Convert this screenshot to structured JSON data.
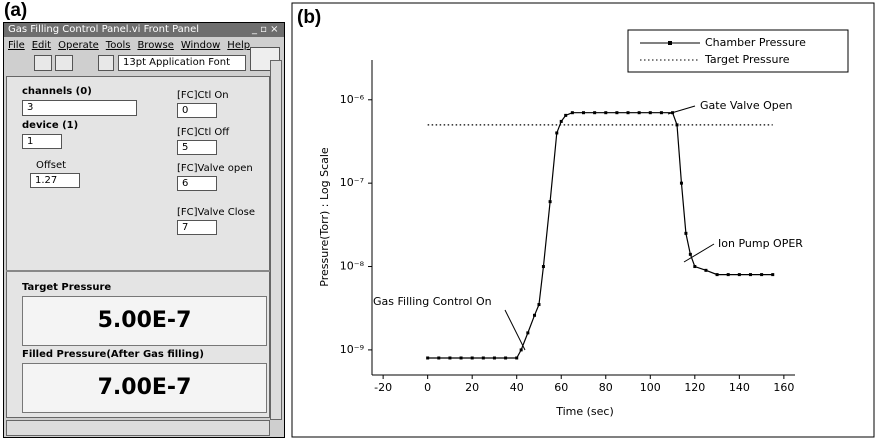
{
  "panel": {
    "label": "(a)",
    "window_title": "Gas Filling Control Panel.vi Front Panel",
    "menu": [
      "File",
      "Edit",
      "Operate",
      "Tools",
      "Browse",
      "Window",
      "Help"
    ],
    "font": "13pt Application Font",
    "controls": [
      {
        "label": "channels (0)",
        "value": "3"
      },
      {
        "label": "device (1)",
        "value": "1"
      },
      {
        "label": "Offset",
        "value": "1.27"
      },
      {
        "label": "[FC]Ctl On",
        "value": "0"
      },
      {
        "label": "[FC]Ctl Off",
        "value": "5"
      },
      {
        "label": "[FC]Valve open",
        "value": "6"
      },
      {
        "label": "[FC]Valve Close",
        "value": "7"
      }
    ],
    "target_pressure": {
      "label": "Target Pressure",
      "value": "5.00E-7"
    },
    "filled_pressure": {
      "label": "Filled Pressure(After Gas filling)",
      "value": "7.00E-7"
    }
  },
  "chart_data": {
    "type": "line",
    "label": "(b)",
    "x_label": "Time (sec)",
    "y_label": "Pressure(Torr) : Log Scale",
    "yscale": "log",
    "grid": false,
    "legend": "upper right",
    "annotations": [
      "Gate Valve Open",
      "Ion Pump OPER",
      "Gas Filling Control On"
    ],
    "xlim": [
      -25,
      165
    ],
    "xticks": [
      -20,
      0,
      20,
      40,
      60,
      80,
      100,
      120,
      140,
      160
    ],
    "ylim": [
      5e-10,
      3e-06
    ],
    "yticks": [
      {
        "value": 1e-09,
        "label": "10⁻⁹"
      },
      {
        "value": 1e-08,
        "label": "10⁻⁸"
      },
      {
        "value": 1e-07,
        "label": "10⁻⁷"
      },
      {
        "value": 1e-06,
        "label": "10⁻⁶"
      }
    ],
    "series": [
      {
        "name": "Chamber Pressure",
        "color": "#000000",
        "style": "solid",
        "x": [
          0,
          5,
          10,
          15,
          20,
          25,
          30,
          35,
          40,
          42,
          45,
          48,
          50,
          52,
          55,
          58,
          60,
          62,
          65,
          70,
          75,
          80,
          85,
          90,
          95,
          100,
          105,
          110,
          112,
          114,
          116,
          118,
          120,
          125,
          130,
          135,
          140,
          145,
          150,
          155
        ],
        "values": [
          8e-10,
          8e-10,
          8e-10,
          8e-10,
          8e-10,
          8e-10,
          8e-10,
          8e-10,
          8e-10,
          1e-09,
          1.6e-09,
          2.6e-09,
          3.5e-09,
          1e-08,
          6e-08,
          4e-07,
          5.5e-07,
          6.5e-07,
          7e-07,
          7e-07,
          7e-07,
          7e-07,
          7e-07,
          7e-07,
          7e-07,
          7e-07,
          7e-07,
          7e-07,
          5e-07,
          1e-07,
          2.5e-08,
          1.4e-08,
          1e-08,
          9e-09,
          8e-09,
          8e-09,
          8e-09,
          8e-09,
          8e-09,
          8e-09
        ]
      },
      {
        "name": "Target Pressure",
        "color": "#000000",
        "style": "dotted",
        "x": [
          0,
          155
        ],
        "values": [
          5e-07,
          5e-07
        ]
      }
    ]
  }
}
